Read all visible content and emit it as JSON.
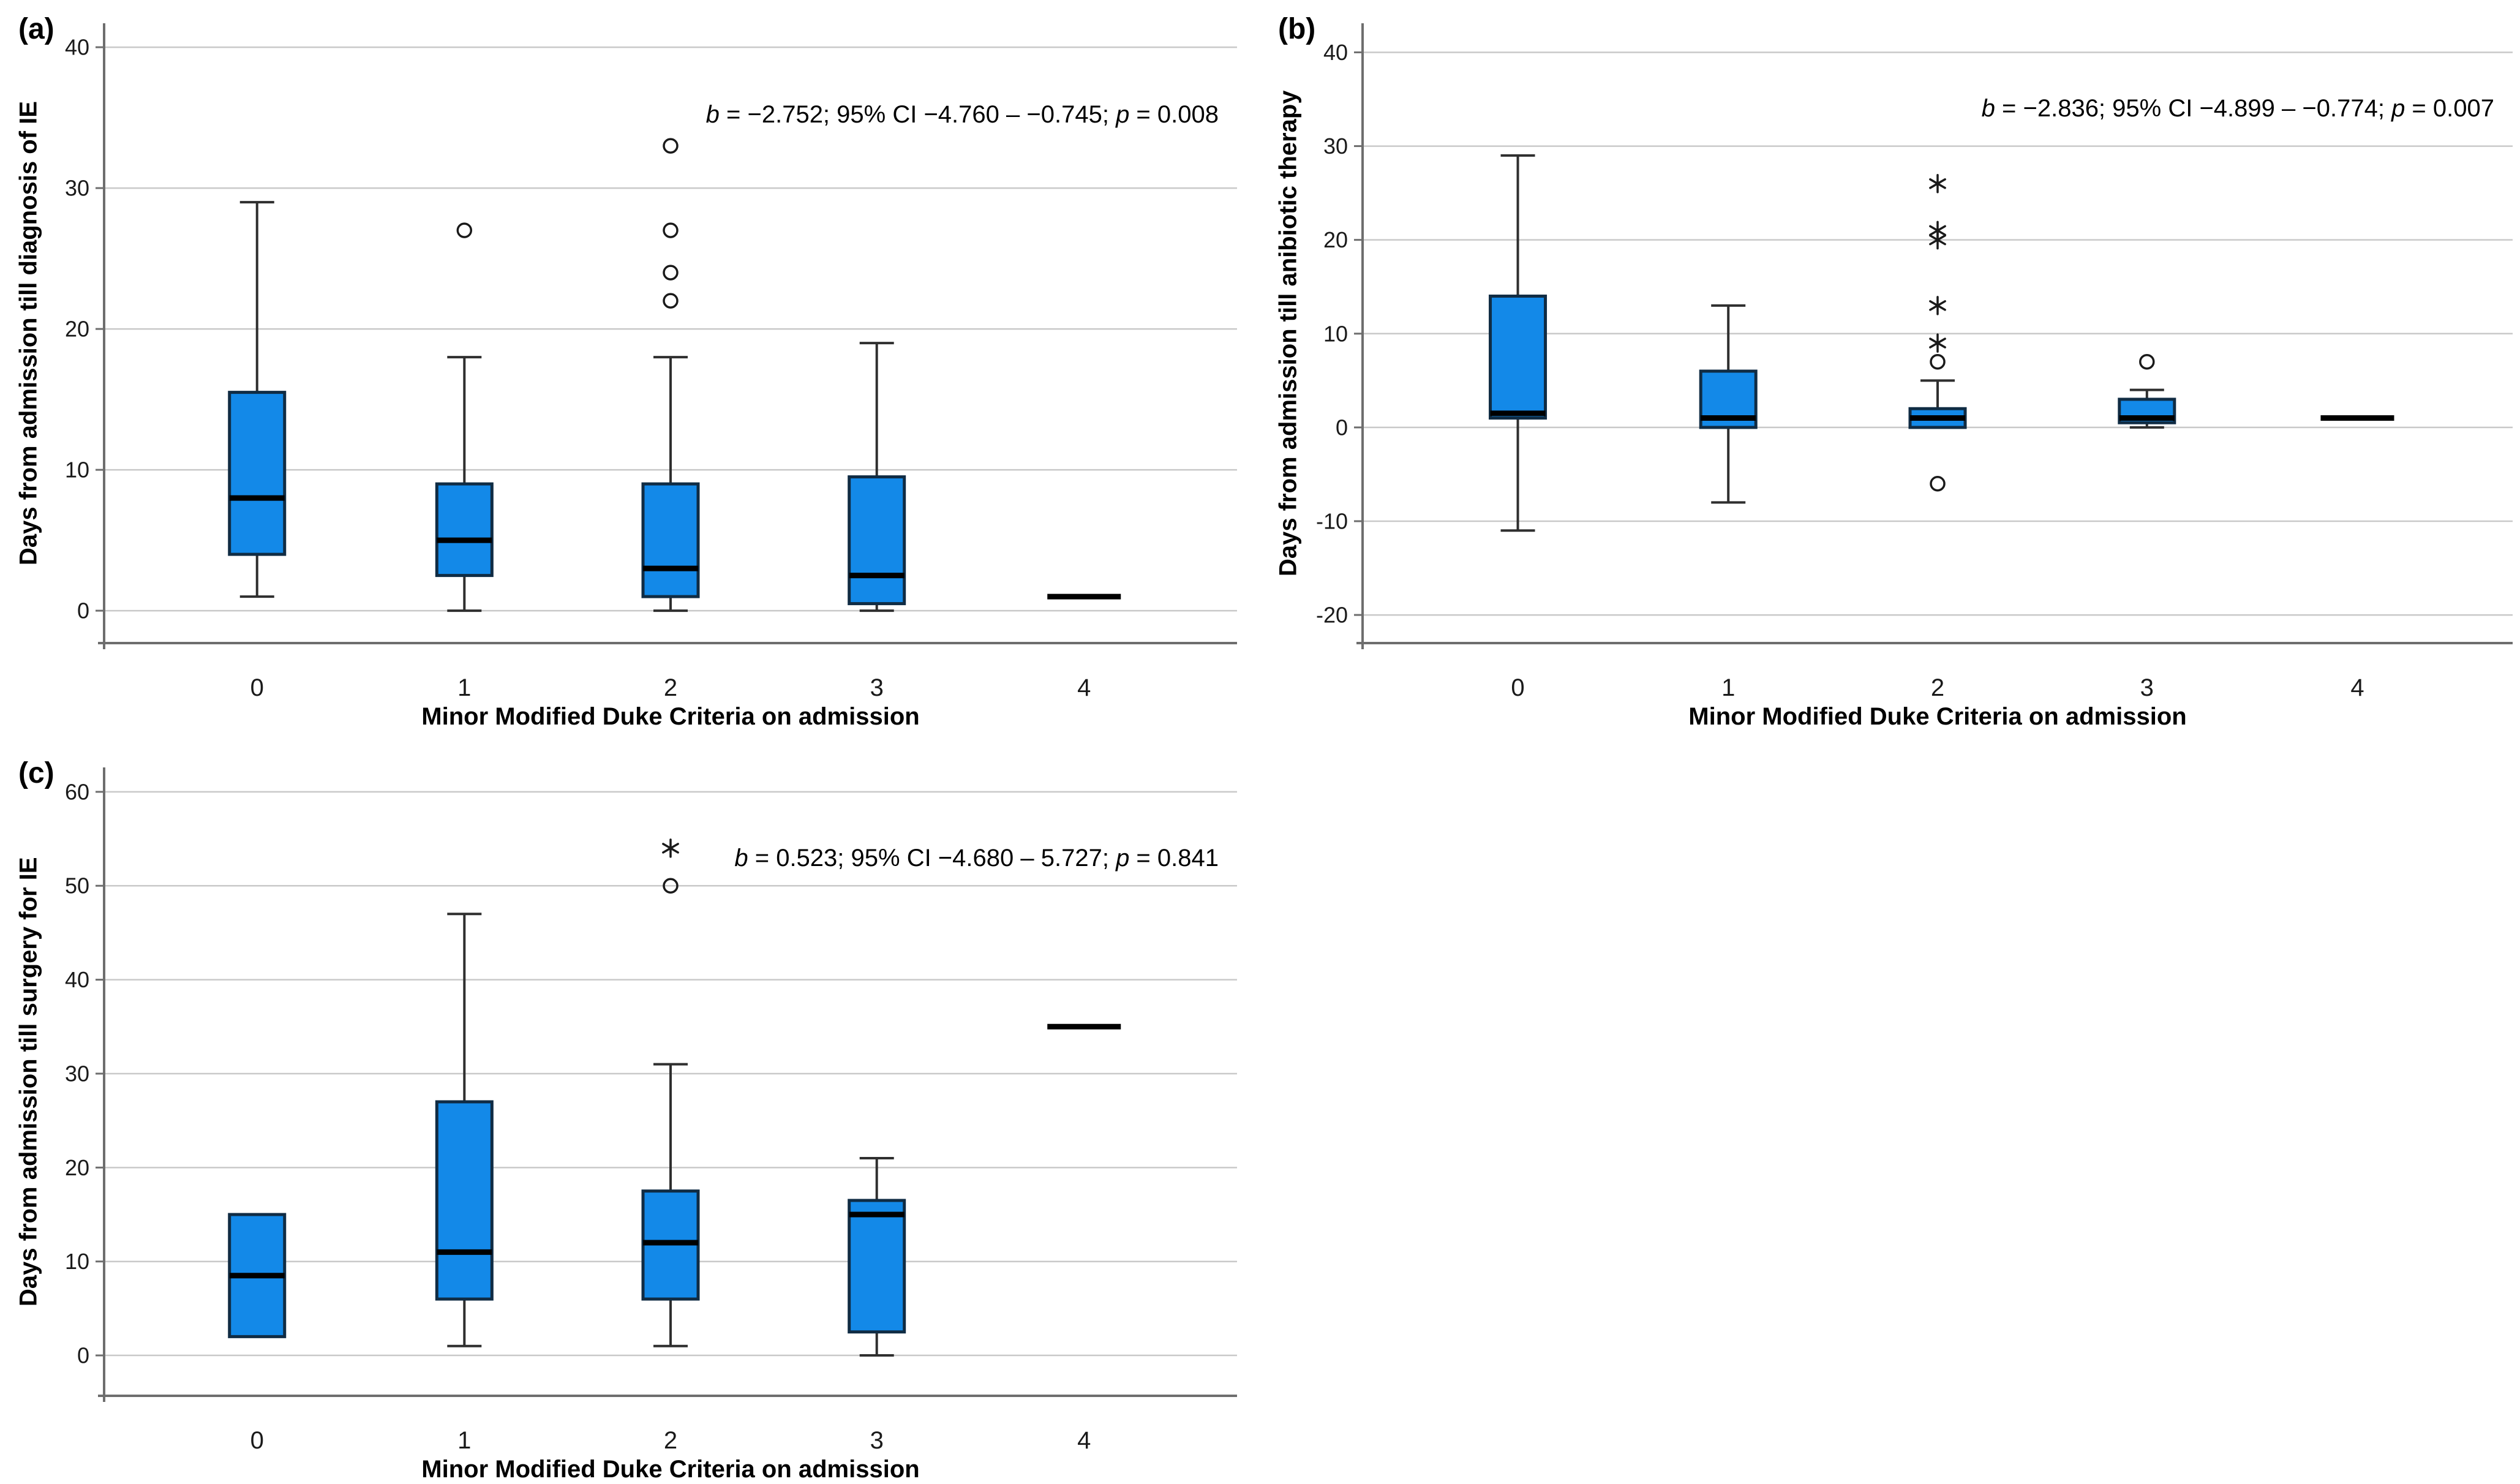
{
  "figure": {
    "background": "#ffffff"
  },
  "colors": {
    "box_fill": "#1389e8",
    "box_border": "#102c44",
    "median": "#000000",
    "whisker": "#2f2f2f",
    "gridline": "#c9c9c9",
    "axis": "#6e6e6e",
    "tick_text": "#1a1a1a",
    "outlier": "#1a1a1a"
  },
  "chart_data": [
    {
      "type": "box",
      "panel_label": "(a)",
      "ylabel": "Days from admission till diagnosis of IE",
      "xlabel": "Minor Modified Duke Criteria on admission",
      "annotation": {
        "italic1": "b",
        "text1": " = −2.752; 95% CI −4.760 – −0.745; ",
        "italic2": "p",
        "text2": " = 0.008"
      },
      "categories": [
        "0",
        "1",
        "2",
        "3",
        "4"
      ],
      "yticks": [
        0,
        10,
        20,
        30,
        40
      ],
      "ylim": [
        -2.3,
        41.7
      ],
      "grid": true,
      "legend": "none",
      "boxes": [
        {
          "category": "0",
          "whisker_low": 1,
          "q1": 4,
          "median": 8,
          "q3": 15.5,
          "whisker_high": 29,
          "outliers": [],
          "extremes": []
        },
        {
          "category": "1",
          "whisker_low": 0,
          "q1": 2.5,
          "median": 5,
          "q3": 9,
          "whisker_high": 18,
          "outliers": [
            27
          ],
          "extremes": []
        },
        {
          "category": "2",
          "whisker_low": 0,
          "q1": 1,
          "median": 3,
          "q3": 9,
          "whisker_high": 18,
          "outliers": [
            22,
            24,
            27,
            33
          ],
          "extremes": []
        },
        {
          "category": "3",
          "whisker_low": 0,
          "q1": 0.5,
          "median": 2.5,
          "q3": 9.5,
          "whisker_high": 19,
          "outliers": [],
          "extremes": []
        },
        {
          "category": "4",
          "median_only": true,
          "median": 1,
          "outliers": [],
          "extremes": []
        }
      ]
    },
    {
      "type": "box",
      "panel_label": "(b)",
      "ylabel": "Days from admission till anibiotic therapy",
      "xlabel": "Minor Modified Duke Criteria on admission",
      "annotation": {
        "italic1": "b",
        "text1": " = −2.836; 95% CI −4.899 – −0.774; ",
        "italic2": "p",
        "text2": " = 0.007"
      },
      "categories": [
        "0",
        "1",
        "2",
        "3",
        "4"
      ],
      "yticks": [
        -20,
        -10,
        0,
        10,
        20,
        30,
        40
      ],
      "ylim": [
        -23,
        43.1
      ],
      "grid": true,
      "legend": "none",
      "boxes": [
        {
          "category": "0",
          "whisker_low": -11,
          "q1": 1,
          "median": 1.5,
          "q3": 14,
          "whisker_high": 29,
          "outliers": [],
          "extremes": []
        },
        {
          "category": "1",
          "whisker_low": -8,
          "q1": 0,
          "median": 1,
          "q3": 6,
          "whisker_high": 13,
          "outliers": [],
          "extremes": []
        },
        {
          "category": "2",
          "whisker_low": 0,
          "q1": 0,
          "median": 1,
          "q3": 2,
          "whisker_high": 5,
          "outliers": [
            7,
            -6
          ],
          "extremes": [
            9,
            13,
            20,
            21,
            26
          ]
        },
        {
          "category": "3",
          "whisker_low": 0,
          "q1": 0.5,
          "median": 1,
          "q3": 3,
          "whisker_high": 4,
          "outliers": [
            7
          ],
          "extremes": []
        },
        {
          "category": "4",
          "median_only": true,
          "median": 1,
          "outliers": [],
          "extremes": []
        }
      ]
    },
    {
      "type": "box",
      "panel_label": "(c)",
      "ylabel": "Days from admission till surgery for IE",
      "xlabel": "Minor Modified Duke Criteria on admission",
      "annotation": {
        "italic1": "b",
        "text1": " = 0.523; 95% CI −4.680 – 5.727; ",
        "italic2": "p",
        "text2": " = 0.841"
      },
      "categories": [
        "0",
        "1",
        "2",
        "3",
        "4"
      ],
      "yticks": [
        0,
        10,
        20,
        30,
        40,
        50,
        60
      ],
      "ylim": [
        -4.3,
        62.6
      ],
      "grid": true,
      "legend": "none",
      "boxes": [
        {
          "category": "0",
          "whisker_low": 2,
          "q1": 2,
          "median": 8.5,
          "q3": 15,
          "whisker_high": 15,
          "outliers": [],
          "extremes": []
        },
        {
          "category": "1",
          "whisker_low": 1,
          "q1": 6,
          "median": 11,
          "q3": 27,
          "whisker_high": 47,
          "outliers": [],
          "extremes": []
        },
        {
          "category": "2",
          "whisker_low": 1,
          "q1": 6,
          "median": 12,
          "q3": 17.5,
          "whisker_high": 31,
          "outliers": [
            50
          ],
          "extremes": [
            54
          ]
        },
        {
          "category": "3",
          "whisker_low": 0,
          "q1": 2.5,
          "median": 15,
          "q3": 16.5,
          "whisker_high": 21,
          "outliers": [],
          "extremes": []
        },
        {
          "category": "4",
          "median_only": true,
          "median": 35,
          "outliers": [],
          "extremes": []
        }
      ]
    }
  ]
}
